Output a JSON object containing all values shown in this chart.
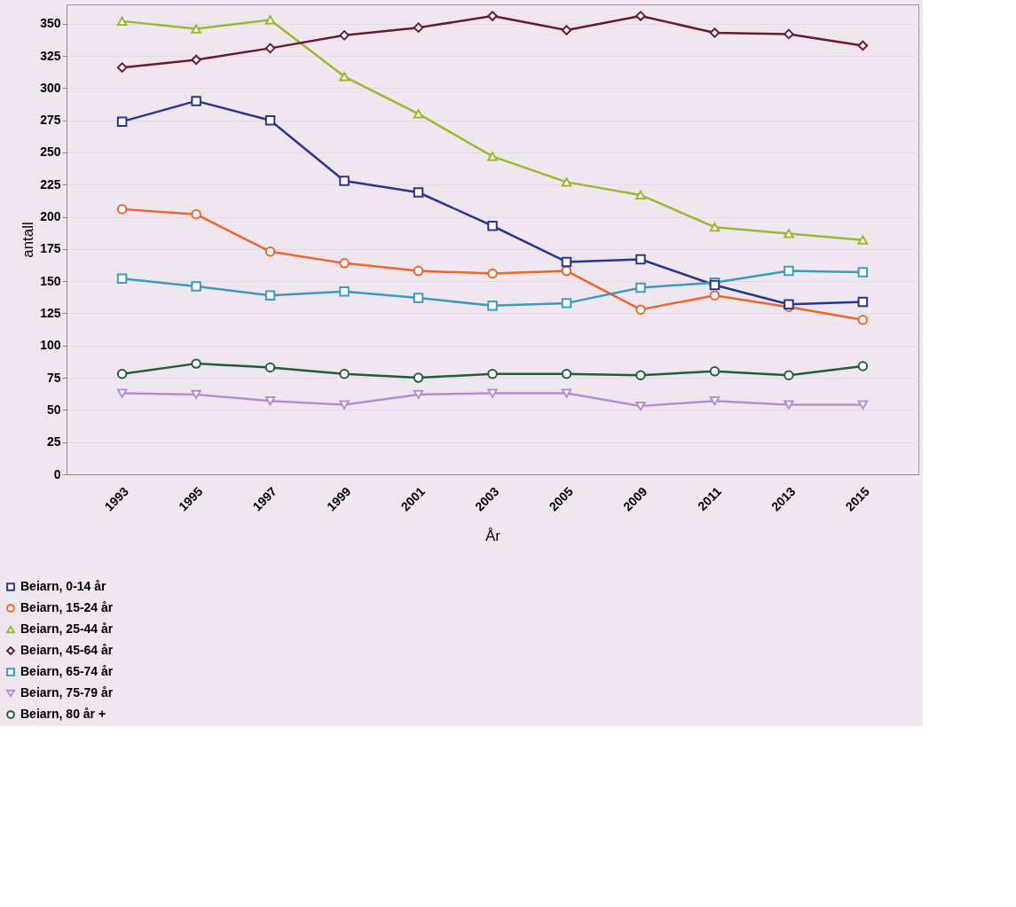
{
  "chart_data": {
    "type": "line",
    "xlabel": "År",
    "ylabel": "antall",
    "categories": [
      "1993",
      "1995",
      "1997",
      "1999",
      "2001",
      "2003",
      "2005",
      "2009",
      "2011",
      "2013",
      "2015"
    ],
    "ylim": [
      0,
      365
    ],
    "yticks": [
      0,
      25,
      50,
      75,
      100,
      125,
      150,
      175,
      200,
      225,
      250,
      275,
      300,
      325,
      350
    ],
    "grid": "y",
    "legend": "bottom left",
    "series": [
      {
        "name": "Beiarn, 0-14 år",
        "color": "#283593",
        "marker": "square",
        "values": [
          274,
          290,
          275,
          228,
          219,
          193,
          165,
          167,
          147,
          132,
          134
        ]
      },
      {
        "name": "Beiarn, 15-24 år",
        "color": "#f0642a",
        "marker": "circle",
        "values": [
          206,
          202,
          173,
          164,
          158,
          156,
          158,
          128,
          139,
          130,
          120
        ]
      },
      {
        "name": "Beiarn, 25-44 år",
        "color": "#9ab92e",
        "marker": "triangle",
        "values": [
          352,
          346,
          353,
          309,
          280,
          247,
          227,
          217,
          192,
          187,
          182
        ]
      },
      {
        "name": "Beiarn, 45-64 år",
        "color": "#6b1a2e",
        "marker": "diamond",
        "values": [
          316,
          322,
          331,
          341,
          347,
          356,
          345,
          356,
          343,
          342,
          333
        ]
      },
      {
        "name": "Beiarn, 65-74 år",
        "color": "#3a9bc0",
        "marker": "square",
        "values": [
          152,
          146,
          139,
          142,
          137,
          131,
          133,
          145,
          149,
          158,
          157
        ]
      },
      {
        "name": "Beiarn, 75-79 år",
        "color": "#b38ed6",
        "marker": "triangle_down",
        "values": [
          63,
          62,
          57,
          54,
          62,
          63,
          63,
          53,
          57,
          54,
          54
        ]
      },
      {
        "name": "Beiarn, 80 år +",
        "color": "#1f5f3a",
        "marker": "circle",
        "values": [
          78,
          86,
          83,
          78,
          75,
          78,
          78,
          77,
          80,
          77,
          84
        ]
      }
    ]
  }
}
